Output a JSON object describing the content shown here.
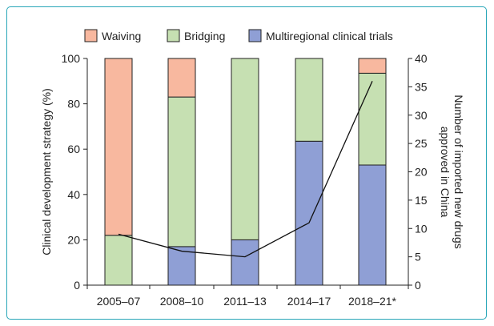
{
  "frame_color": "#27a6b8",
  "chart_data": {
    "type": "bar",
    "stacked": true,
    "categories": [
      "2005–07",
      "2008–10",
      "2011–13",
      "2014–17",
      "2018–21*"
    ],
    "series": [
      {
        "name": "Multiregional clinical trials",
        "color": "#8f9fd5",
        "values": [
          0,
          17,
          20,
          63.5,
          53
        ]
      },
      {
        "name": "Bridging",
        "color": "#c6e0b2",
        "values": [
          22,
          66,
          80,
          36.5,
          40.5
        ]
      },
      {
        "name": "Waiving",
        "color": "#f8b89f",
        "values": [
          78,
          17,
          0,
          0,
          6.5
        ]
      }
    ],
    "legend_order": [
      "Waiving",
      "Bridging",
      "Multiregional clinical trials"
    ],
    "legend_position": "top",
    "line_series": {
      "values": [
        9,
        6,
        5,
        11,
        36
      ]
    },
    "ylabel": "Clinical development strategy (%)",
    "ylim": [
      0,
      100
    ],
    "yticks": [
      0,
      20,
      40,
      60,
      80,
      100
    ],
    "y2label": [
      "Number of imported new drugs",
      "approved in China"
    ],
    "y2lim": [
      0,
      40
    ],
    "y2ticks": [
      0,
      5,
      10,
      15,
      20,
      25,
      30,
      35,
      40
    ],
    "grid": false
  }
}
